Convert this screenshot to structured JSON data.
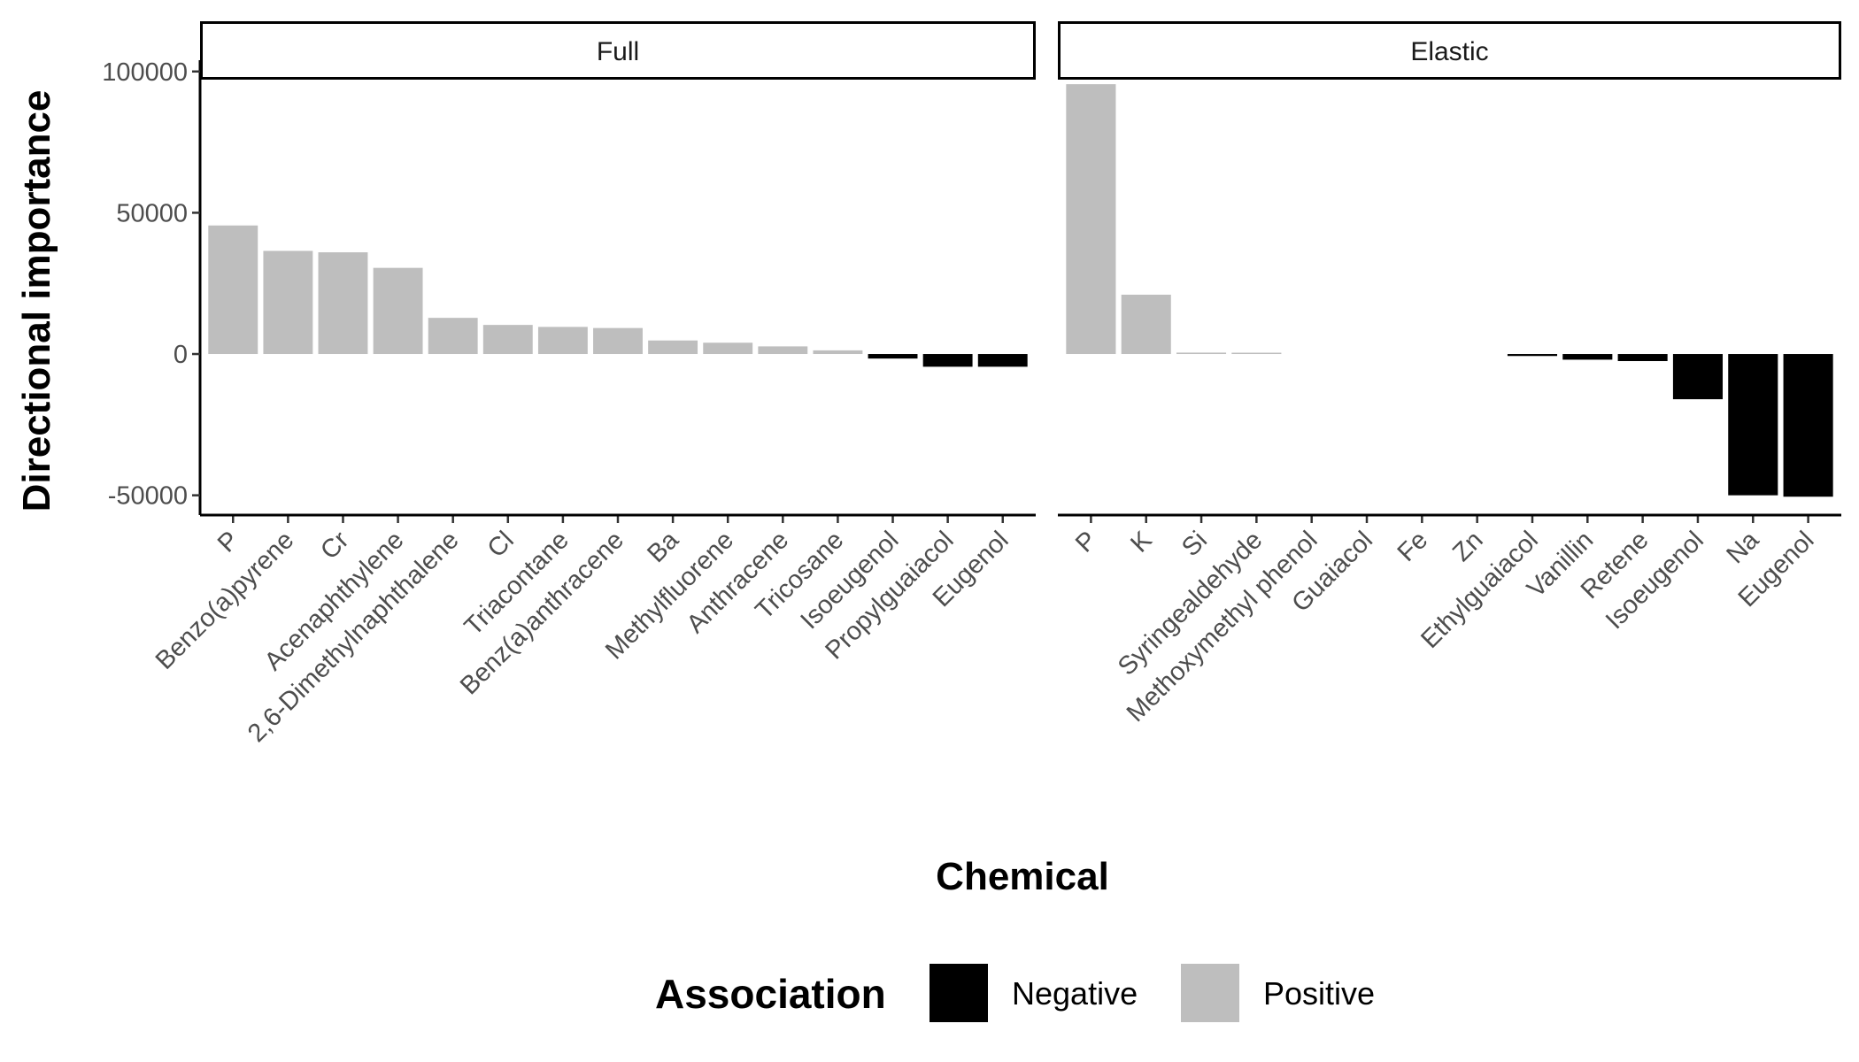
{
  "chart_data": {
    "type": "bar",
    "ylabel": "Directional importance",
    "xlabel": "Chemical",
    "yticks": [
      "100000",
      "50000",
      "0",
      "-50000"
    ],
    "ylim": [
      -57000,
      104000
    ],
    "grid": false,
    "legend": {
      "title": "Association",
      "position": "bottom",
      "items": [
        {
          "label": "Negative",
          "color": "#000000"
        },
        {
          "label": "Positive",
          "color": "#bebebe"
        }
      ]
    },
    "panels": [
      {
        "strip": "Full",
        "categories": [
          "P",
          "Benzo(a)pyrene",
          "Cr",
          "Acenaphthylene",
          "2,6-Dimethylnaphthalene",
          "Cl",
          "Triacontane",
          "Benz(a)anthracene",
          "Ba",
          "Methylfluorene",
          "Anthracene",
          "Tricosane",
          "Isoeugenol",
          "Propylguaiacol",
          "Eugenol"
        ],
        "values": [
          45500,
          36500,
          36000,
          30500,
          12800,
          10300,
          9600,
          9200,
          4800,
          4000,
          2700,
          1300,
          -1600,
          -4500,
          -4500
        ],
        "association": [
          "Positive",
          "Positive",
          "Positive",
          "Positive",
          "Positive",
          "Positive",
          "Positive",
          "Positive",
          "Positive",
          "Positive",
          "Positive",
          "Positive",
          "Negative",
          "Negative",
          "Negative"
        ]
      },
      {
        "strip": "Elastic",
        "categories": [
          "P",
          "K",
          "Si",
          "Syringealdehyde",
          "Methoxymethyl phenol",
          "Guaiacol",
          "Fe",
          "Zn",
          "Ethylguaiacol",
          "Vanillin",
          "Retene",
          "Isoeugenol",
          "Na",
          "Eugenol"
        ],
        "values": [
          95500,
          21000,
          500,
          200,
          0,
          0,
          0,
          0,
          -700,
          -2000,
          -2500,
          -16000,
          -50000,
          -50500
        ],
        "association": [
          "Positive",
          "Positive",
          "Positive",
          "Positive",
          "Positive",
          "Positive",
          "Positive",
          "Positive",
          "Negative",
          "Negative",
          "Negative",
          "Negative",
          "Negative",
          "Negative"
        ]
      }
    ]
  }
}
